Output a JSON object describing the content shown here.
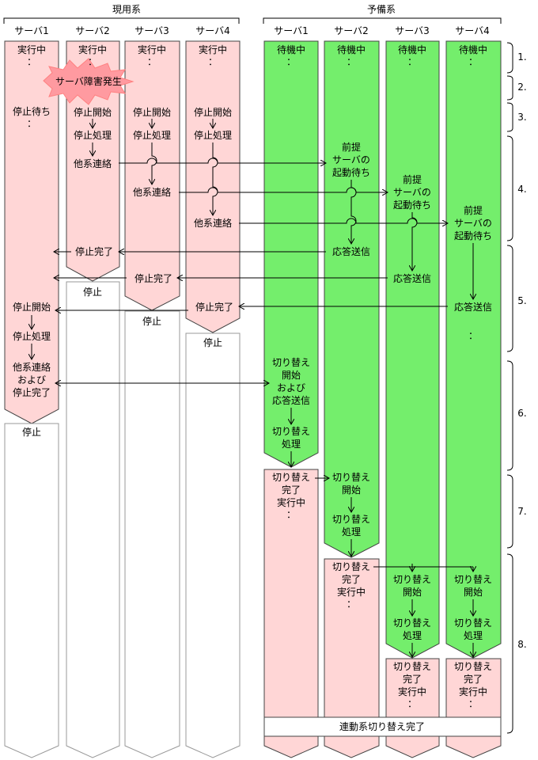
{
  "groups": {
    "active": "現用系",
    "standby": "予備系"
  },
  "servers": {
    "a1": "サーバ1",
    "a2": "サーバ2",
    "a3": "サーバ3",
    "a4": "サーバ4",
    "s1": "サーバ1",
    "s2": "サーバ2",
    "s3": "サーバ3",
    "s4": "サーバ4"
  },
  "labels": {
    "running": "実行中",
    "dots": "：",
    "fault": "サーバ障害発生",
    "wait_stop": "停止待ち",
    "stop_start": "停止開始",
    "stop_proc": "停止処理",
    "contact_other": "他系連絡",
    "stop_done": "停止完了",
    "stopped": "停止",
    "contact_and": "他系連絡",
    "oyobi": "および",
    "standby": "待機中",
    "prereq_1": "前提",
    "prereq_2": "サーバの",
    "prereq_3": "起動待ち",
    "reply_send": "応答送信",
    "sw": "切り替え",
    "start": "開始",
    "proc": "処理",
    "done": "完了",
    "sw_start": "切り替え",
    "linked_done": "連動系切り替え完了"
  },
  "steps": [
    "1.",
    "2.",
    "3.",
    "4.",
    "5.",
    "6.",
    "7.",
    "8."
  ]
}
